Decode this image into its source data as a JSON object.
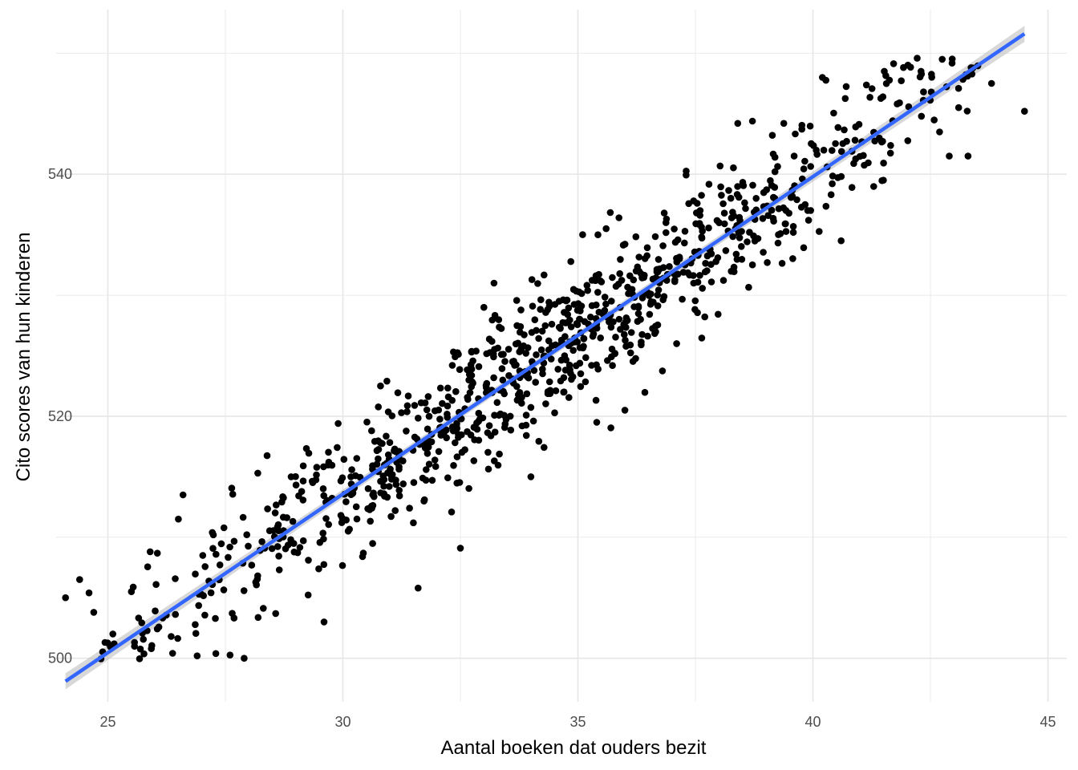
{
  "chart_data": {
    "type": "scatter",
    "xlabel": "Aantal boeken dat ouders bezit",
    "ylabel": "Cito scores van hun kinderen",
    "xlim": [
      23.9,
      45.4
    ],
    "ylim": [
      496.4,
      553.6
    ],
    "x_ticks": [
      25,
      30,
      35,
      40,
      45
    ],
    "y_ticks": [
      500,
      520,
      540
    ],
    "x_tick_labels": [
      "25",
      "30",
      "35",
      "40",
      "45"
    ],
    "y_tick_labels": [
      "500",
      "520",
      "540"
    ],
    "grid": true,
    "point_count": 1000,
    "point_color": "#000000",
    "trend_line": {
      "method": "linear",
      "x": [
        24.1,
        44.5
      ],
      "y": [
        498.1,
        551.6
      ],
      "color": "#3366FF",
      "band_color": "#BEBEBE"
    },
    "sample_points": [
      [
        24.1,
        505.0
      ],
      [
        24.4,
        506.5
      ],
      [
        24.6,
        505.4
      ],
      [
        24.7,
        503.8
      ],
      [
        25.5,
        505.5
      ],
      [
        25.9,
        508.8
      ],
      [
        26.6,
        513.5
      ],
      [
        26.5,
        511.5
      ],
      [
        26.9,
        500.2
      ],
      [
        27.9,
        500.0
      ],
      [
        28.9,
        515.0
      ],
      [
        29.6,
        503.0
      ],
      [
        29.9,
        519.4
      ],
      [
        30.8,
        522.5
      ],
      [
        31.6,
        505.8
      ],
      [
        32.5,
        509.1
      ],
      [
        33.0,
        529.0
      ],
      [
        34.0,
        515.0
      ],
      [
        34.6,
        529.5
      ],
      [
        35.1,
        535.0
      ],
      [
        35.4,
        519.5
      ],
      [
        35.6,
        535.5
      ],
      [
        36.0,
        520.5
      ],
      [
        37.1,
        526.0
      ],
      [
        37.6,
        537.0
      ],
      [
        38.4,
        544.2
      ],
      [
        39.6,
        541.5
      ],
      [
        40.2,
        548.0
      ],
      [
        40.6,
        534.5
      ],
      [
        41.5,
        539.5
      ],
      [
        42.3,
        548.5
      ],
      [
        42.9,
        541.5
      ],
      [
        43.1,
        545.5
      ],
      [
        43.3,
        541.5
      ],
      [
        43.8,
        547.5
      ],
      [
        44.5,
        545.2
      ]
    ]
  }
}
